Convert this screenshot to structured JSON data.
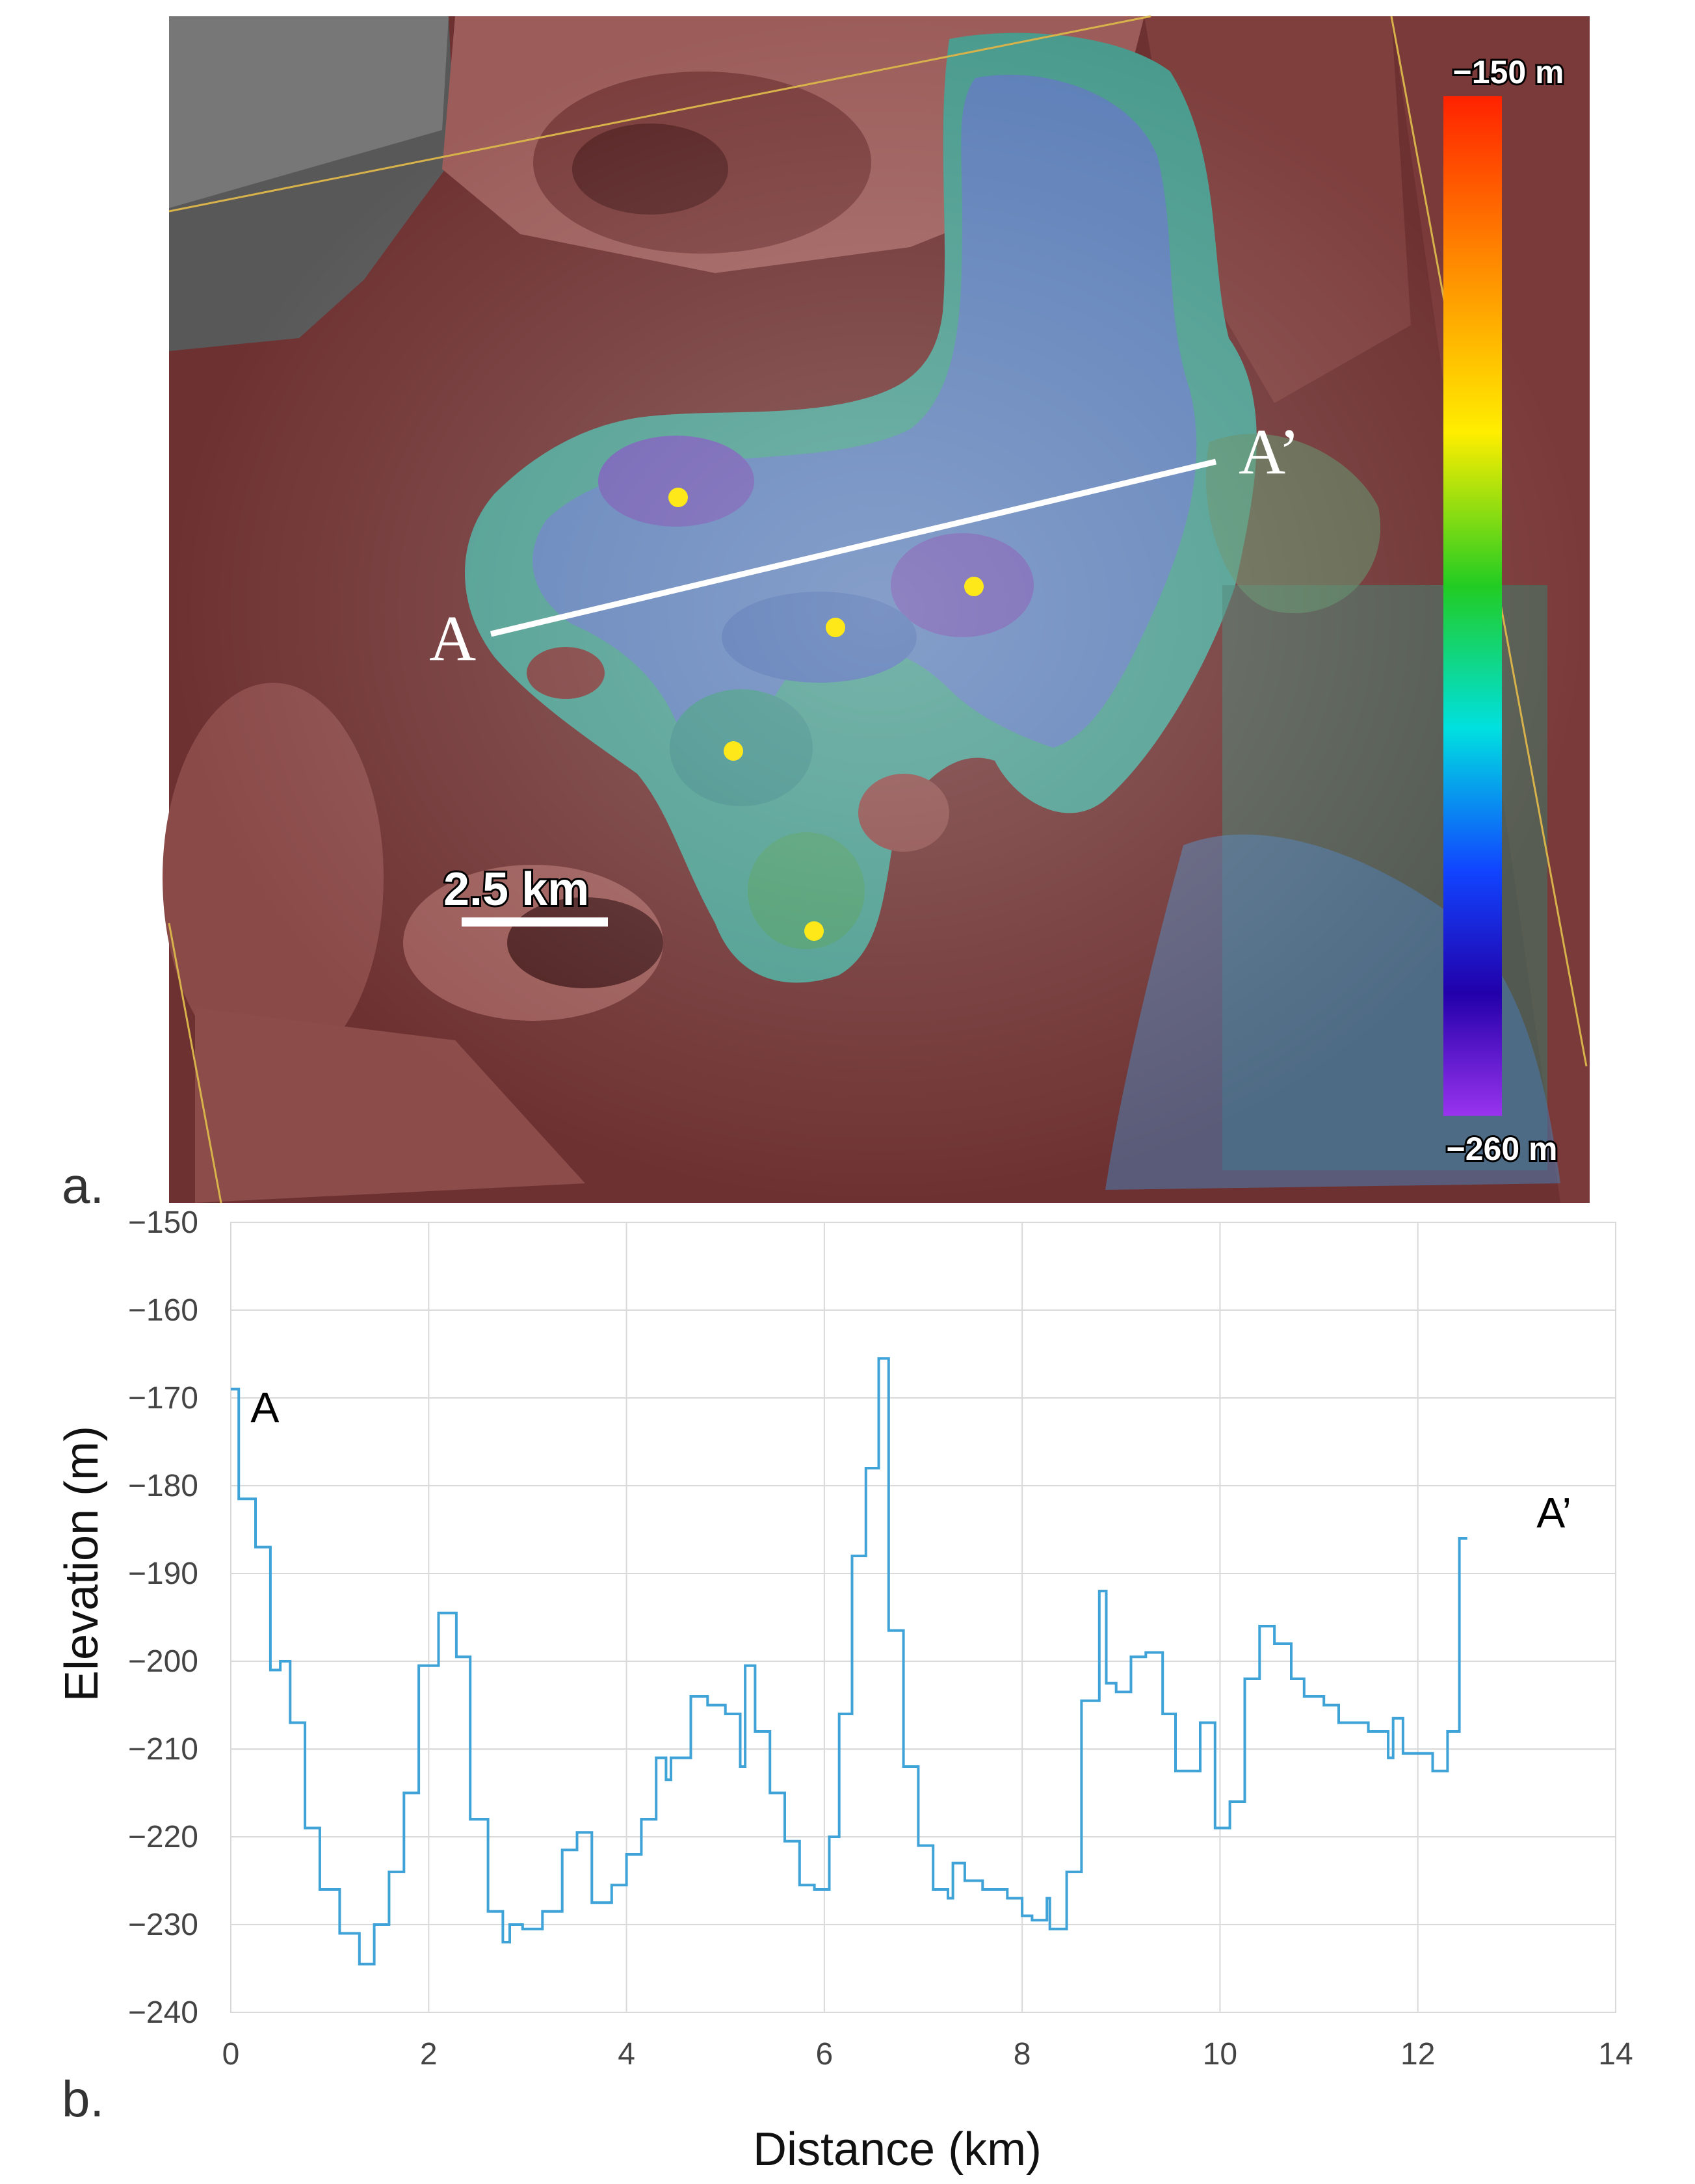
{
  "panel_a": {
    "letter": "a.",
    "colorbar": {
      "top_label": "−150 m",
      "bottom_label": "−260 m",
      "colors": [
        "#ff2200",
        "#ff8800",
        "#ffee00",
        "#22cc22",
        "#00e0e0",
        "#1144ff",
        "#2200aa",
        "#9933ee"
      ]
    },
    "profile_line": {
      "start_label": "A",
      "end_label": "A’"
    },
    "scale_bar": {
      "label": "2.5 km"
    },
    "marker_color": "#ffe81a",
    "markers": 5
  },
  "panel_b": {
    "letter": "b."
  },
  "chart_data": {
    "type": "line",
    "xlabel": "Distance (km)",
    "ylabel": "Elevation (m)",
    "xlim": [
      0,
      14
    ],
    "ylim": [
      -240,
      -150
    ],
    "xticks": [
      0,
      2,
      4,
      6,
      8,
      10,
      12,
      14
    ],
    "yticks": [
      -150,
      -160,
      -170,
      -180,
      -190,
      -200,
      -210,
      -220,
      -230,
      -240
    ],
    "grid": true,
    "line_color": "#3fa3d8",
    "annotations": [
      {
        "text": "A",
        "x": 0.2,
        "y": -171
      },
      {
        "text": "A’",
        "x": 13.2,
        "y": -183
      }
    ],
    "series": [
      {
        "values": [
          [
            0.0,
            -169
          ],
          [
            0.08,
            -169
          ],
          [
            0.08,
            -181.5
          ],
          [
            0.25,
            -181.5
          ],
          [
            0.25,
            -187
          ],
          [
            0.4,
            -187
          ],
          [
            0.4,
            -201
          ],
          [
            0.5,
            -201
          ],
          [
            0.5,
            -200
          ],
          [
            0.6,
            -200
          ],
          [
            0.6,
            -207
          ],
          [
            0.75,
            -207
          ],
          [
            0.75,
            -219
          ],
          [
            0.9,
            -219
          ],
          [
            0.9,
            -226
          ],
          [
            1.1,
            -226
          ],
          [
            1.1,
            -231
          ],
          [
            1.3,
            -231
          ],
          [
            1.3,
            -234.5
          ],
          [
            1.45,
            -234.5
          ],
          [
            1.45,
            -230
          ],
          [
            1.6,
            -230
          ],
          [
            1.6,
            -224
          ],
          [
            1.75,
            -224
          ],
          [
            1.75,
            -215
          ],
          [
            1.9,
            -215
          ],
          [
            1.9,
            -200.5
          ],
          [
            2.1,
            -200.5
          ],
          [
            2.1,
            -194.5
          ],
          [
            2.28,
            -194.5
          ],
          [
            2.28,
            -199.5
          ],
          [
            2.42,
            -199.5
          ],
          [
            2.42,
            -218
          ],
          [
            2.6,
            -218
          ],
          [
            2.6,
            -228.5
          ],
          [
            2.75,
            -228.5
          ],
          [
            2.75,
            -232
          ],
          [
            2.82,
            -232
          ],
          [
            2.82,
            -230
          ],
          [
            2.95,
            -230
          ],
          [
            2.95,
            -230.5
          ],
          [
            3.15,
            -230.5
          ],
          [
            3.15,
            -228.5
          ],
          [
            3.35,
            -228.5
          ],
          [
            3.35,
            -221.5
          ],
          [
            3.5,
            -221.5
          ],
          [
            3.5,
            -219.5
          ],
          [
            3.65,
            -219.5
          ],
          [
            3.65,
            -227.5
          ],
          [
            3.85,
            -227.5
          ],
          [
            3.85,
            -225.5
          ],
          [
            4.0,
            -225.5
          ],
          [
            4.0,
            -222
          ],
          [
            4.15,
            -222
          ],
          [
            4.15,
            -218
          ],
          [
            4.3,
            -218
          ],
          [
            4.3,
            -211
          ],
          [
            4.4,
            -211
          ],
          [
            4.4,
            -213.5
          ],
          [
            4.45,
            -213.5
          ],
          [
            4.45,
            -211
          ],
          [
            4.65,
            -211
          ],
          [
            4.65,
            -204
          ],
          [
            4.82,
            -204
          ],
          [
            4.82,
            -205
          ],
          [
            5.0,
            -205
          ],
          [
            5.0,
            -206
          ],
          [
            5.15,
            -206
          ],
          [
            5.15,
            -212
          ],
          [
            5.2,
            -212
          ],
          [
            5.2,
            -200.5
          ],
          [
            5.3,
            -200.5
          ],
          [
            5.3,
            -208
          ],
          [
            5.45,
            -208
          ],
          [
            5.45,
            -215
          ],
          [
            5.6,
            -215
          ],
          [
            5.6,
            -220.5
          ],
          [
            5.75,
            -220.5
          ],
          [
            5.75,
            -225.5
          ],
          [
            5.9,
            -225.5
          ],
          [
            5.9,
            -226
          ],
          [
            6.05,
            -226
          ],
          [
            6.05,
            -220
          ],
          [
            6.15,
            -220
          ],
          [
            6.15,
            -206
          ],
          [
            6.28,
            -206
          ],
          [
            6.28,
            -188
          ],
          [
            6.42,
            -188
          ],
          [
            6.42,
            -178
          ],
          [
            6.55,
            -178
          ],
          [
            6.55,
            -165.5
          ],
          [
            6.65,
            -165.5
          ],
          [
            6.65,
            -196.5
          ],
          [
            6.8,
            -196.5
          ],
          [
            6.8,
            -212
          ],
          [
            6.95,
            -212
          ],
          [
            6.95,
            -221
          ],
          [
            7.1,
            -221
          ],
          [
            7.1,
            -226
          ],
          [
            7.25,
            -226
          ],
          [
            7.25,
            -227
          ],
          [
            7.3,
            -227
          ],
          [
            7.3,
            -223
          ],
          [
            7.42,
            -223
          ],
          [
            7.42,
            -225
          ],
          [
            7.6,
            -225
          ],
          [
            7.6,
            -226
          ],
          [
            7.85,
            -226
          ],
          [
            7.85,
            -227
          ],
          [
            8.0,
            -227
          ],
          [
            8.0,
            -229
          ],
          [
            8.1,
            -229
          ],
          [
            8.1,
            -229.5
          ],
          [
            8.25,
            -229.5
          ],
          [
            8.25,
            -227
          ],
          [
            8.28,
            -227
          ],
          [
            8.28,
            -230.5
          ],
          [
            8.45,
            -230.5
          ],
          [
            8.45,
            -224
          ],
          [
            8.6,
            -224
          ],
          [
            8.6,
            -204.5
          ],
          [
            8.78,
            -204.5
          ],
          [
            8.78,
            -192
          ],
          [
            8.85,
            -192
          ],
          [
            8.85,
            -202.5
          ],
          [
            8.95,
            -202.5
          ],
          [
            8.95,
            -203.5
          ],
          [
            9.1,
            -203.5
          ],
          [
            9.1,
            -199.5
          ],
          [
            9.25,
            -199.5
          ],
          [
            9.25,
            -199
          ],
          [
            9.42,
            -199
          ],
          [
            9.42,
            -206
          ],
          [
            9.55,
            -206
          ],
          [
            9.55,
            -212.5
          ],
          [
            9.8,
            -212.5
          ],
          [
            9.8,
            -207
          ],
          [
            9.95,
            -207
          ],
          [
            9.95,
            -219
          ],
          [
            10.1,
            -219
          ],
          [
            10.1,
            -216
          ],
          [
            10.25,
            -216
          ],
          [
            10.25,
            -202
          ],
          [
            10.4,
            -202
          ],
          [
            10.4,
            -196
          ],
          [
            10.55,
            -196
          ],
          [
            10.55,
            -198
          ],
          [
            10.72,
            -198
          ],
          [
            10.72,
            -202
          ],
          [
            10.85,
            -202
          ],
          [
            10.85,
            -204
          ],
          [
            11.05,
            -204
          ],
          [
            11.05,
            -205
          ],
          [
            11.2,
            -205
          ],
          [
            11.2,
            -207
          ],
          [
            11.5,
            -207
          ],
          [
            11.5,
            -208
          ],
          [
            11.7,
            -208
          ],
          [
            11.7,
            -211
          ],
          [
            11.75,
            -211
          ],
          [
            11.75,
            -206.5
          ],
          [
            11.85,
            -206.5
          ],
          [
            11.85,
            -210.5
          ],
          [
            12.15,
            -210.5
          ],
          [
            12.15,
            -212.5
          ],
          [
            12.3,
            -212.5
          ],
          [
            12.3,
            -208
          ],
          [
            12.42,
            -208
          ],
          [
            12.42,
            -186
          ],
          [
            12.5,
            -186
          ]
        ]
      }
    ]
  }
}
